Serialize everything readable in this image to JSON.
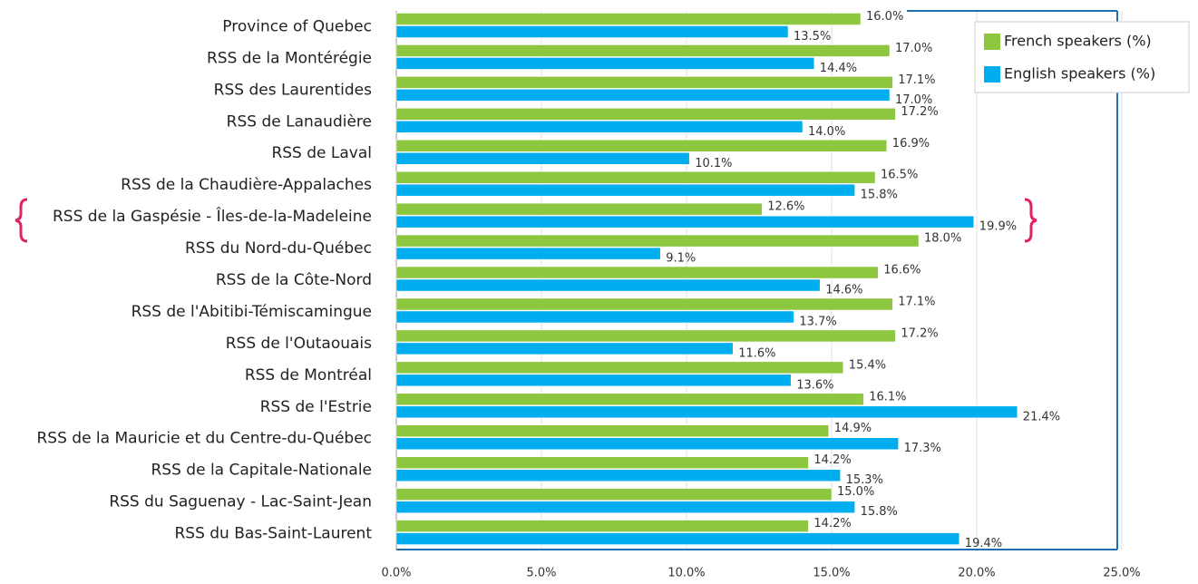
{
  "chart_data": {
    "type": "bar",
    "orientation": "horizontal",
    "categories": [
      "Province of Quebec",
      "RSS de la Montérégie",
      "RSS des Laurentides",
      "RSS de Lanaudière",
      "RSS de Laval",
      "RSS de la Chaudière-Appalaches",
      "RSS de la Gaspésie - Îles-de-la-Madeleine",
      "RSS du Nord-du-Québec",
      "RSS de la Côte-Nord",
      "RSS de l'Abitibi-Témiscamingue",
      "RSS de l'Outaouais",
      "RSS de Montréal",
      "RSS de l'Estrie",
      "RSS de la Mauricie et du Centre-du-Québec",
      "RSS de la Capitale-Nationale",
      "RSS du Saguenay - Lac-Saint-Jean",
      "RSS du Bas-Saint-Laurent"
    ],
    "series": [
      {
        "name": "French speakers (%)",
        "color": "#8dc63f",
        "values": [
          16.0,
          17.0,
          17.1,
          17.2,
          16.9,
          16.5,
          12.6,
          18.0,
          16.6,
          17.1,
          17.2,
          15.4,
          16.1,
          14.9,
          14.2,
          15.0,
          14.2
        ],
        "value_labels": [
          "16.0%",
          "17.0%",
          "17.1%",
          "17.2%",
          "16.9%",
          "16.5%",
          "12.6%",
          "18.0%",
          "16.6%",
          "17.1%",
          "17.2%",
          "15.4%",
          "16.1%",
          "14.9%",
          "14.2%",
          "15.0%",
          "14.2%"
        ]
      },
      {
        "name": "English speakers (%)",
        "color": "#00aeef",
        "values": [
          13.5,
          14.4,
          17.0,
          14.0,
          10.1,
          15.8,
          19.9,
          9.1,
          14.6,
          13.7,
          11.6,
          13.6,
          21.4,
          17.3,
          15.3,
          15.8,
          19.4
        ],
        "value_labels": [
          "13.5%",
          "14.4%",
          "17.0%",
          "14.0%",
          "10.1%",
          "15.8%",
          "19.9%",
          "9.1%",
          "14.6%",
          "13.7%",
          "11.6%",
          "13.6%",
          "21.4%",
          "17.3%",
          "15.3%",
          "15.8%",
          "19.4%"
        ]
      }
    ],
    "xlim": [
      0,
      25
    ],
    "xticks": [
      {
        "value": 0,
        "label": "0.0%"
      },
      {
        "value": 5,
        "label": "5.0%"
      },
      {
        "value": 10,
        "label": "10.0%"
      },
      {
        "value": 15,
        "label": "15.0%"
      },
      {
        "value": 20,
        "label": "20.0%"
      },
      {
        "value": 25,
        "label": "25.0%"
      }
    ],
    "grid": true,
    "legend": "upper right"
  }
}
